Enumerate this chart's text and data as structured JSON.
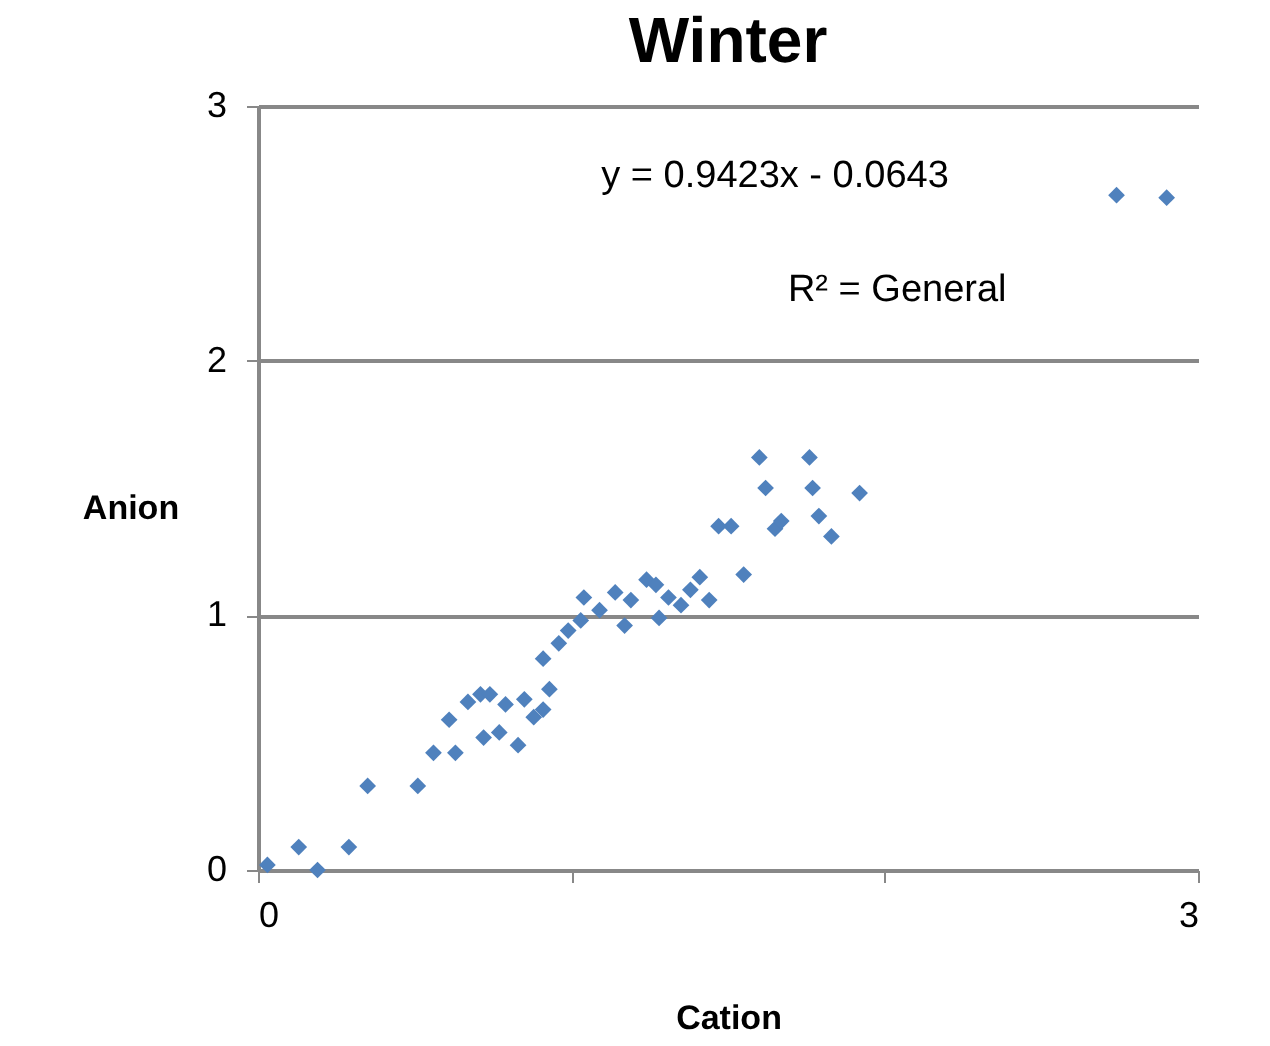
{
  "chart_data": {
    "type": "scatter",
    "title": "Winter",
    "xlabel": "Cation",
    "ylabel": "Anion",
    "annotations": [
      "y = 0.9423x - 0.0643",
      "R² = General"
    ],
    "xlim": [
      0,
      3
    ],
    "xticks": [
      0,
      {
        "value": 1,
        "label": null
      },
      {
        "value": 2,
        "label": null
      },
      3
    ],
    "ylim": [
      0,
      3
    ],
    "yticks": [
      0,
      1,
      2,
      3
    ],
    "grid": "y",
    "marker": "diamond",
    "legend": false,
    "series": [
      {
        "color": "#4f81bd",
        "x": [
          0.03,
          0.13,
          0.19,
          0.29,
          0.35,
          0.51,
          0.56,
          0.61,
          0.63,
          0.67,
          0.71,
          0.74,
          0.72,
          0.77,
          0.79,
          0.83,
          0.85,
          0.88,
          0.91,
          0.93,
          0.91,
          0.96,
          0.99,
          1.03,
          1.04,
          1.09,
          1.14,
          1.17,
          1.19,
          1.24,
          1.27,
          1.28,
          1.31,
          1.35,
          1.38,
          1.41,
          1.44,
          1.47,
          1.51,
          1.55,
          1.6,
          1.62,
          1.65,
          1.67,
          1.76,
          1.77,
          1.79,
          1.92,
          1.83,
          2.74,
          2.9
        ],
        "values": [
          0.02,
          0.09,
          0.0,
          0.09,
          0.33,
          0.33,
          0.46,
          0.59,
          0.46,
          0.66,
          0.69,
          0.69,
          0.52,
          0.54,
          0.65,
          0.49,
          0.67,
          0.6,
          0.63,
          0.71,
          0.83,
          0.89,
          0.94,
          0.98,
          1.07,
          1.02,
          1.09,
          0.96,
          1.06,
          1.14,
          1.12,
          0.99,
          1.07,
          1.04,
          1.1,
          1.15,
          1.06,
          1.35,
          1.35,
          1.16,
          1.62,
          1.5,
          1.34,
          1.37,
          1.62,
          1.5,
          1.39,
          1.48,
          1.31,
          2.65,
          2.64
        ]
      }
    ]
  }
}
